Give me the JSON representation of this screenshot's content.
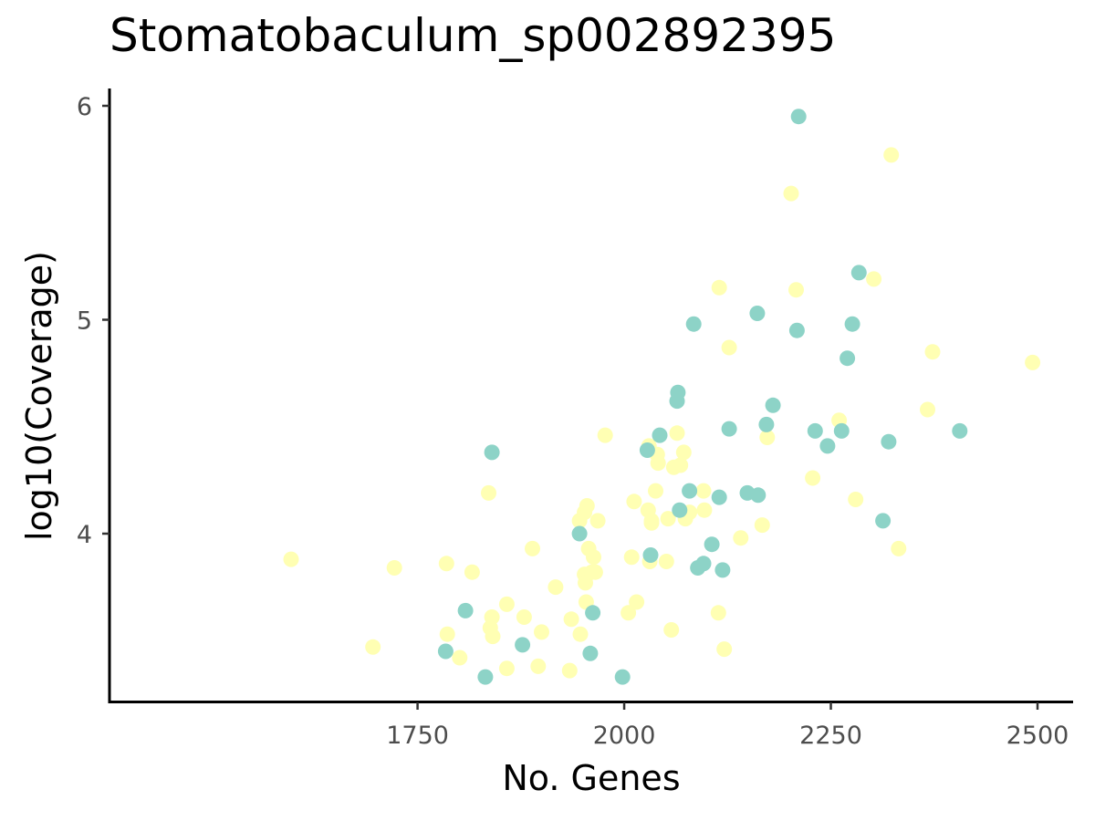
{
  "chart_data": {
    "type": "scatter",
    "title": "Stomatobaculum_sp002892395",
    "xlabel": "No. Genes",
    "ylabel": "log10(Coverage)",
    "xlim": [
      1500,
      2510
    ],
    "ylim": [
      3.2,
      6.08
    ],
    "x_ticks": [
      {
        "value": 1750,
        "label": "1750"
      },
      {
        "value": 2000,
        "label": "2000"
      },
      {
        "value": 2250,
        "label": "2250"
      },
      {
        "value": 2500,
        "label": "2500"
      }
    ],
    "y_ticks": [
      {
        "value": 4,
        "label": "4"
      },
      {
        "value": 5,
        "label": "5"
      },
      {
        "value": 6,
        "label": "6"
      }
    ],
    "grid": false,
    "legend": "none",
    "series": [
      {
        "color": "#ffffb3",
        "points": [
          [
            1597,
            3.88
          ],
          [
            1696,
            3.47
          ],
          [
            1722,
            3.84
          ],
          [
            1785,
            3.86
          ],
          [
            1786,
            3.53
          ],
          [
            1801,
            3.42
          ],
          [
            1816,
            3.82
          ],
          [
            1836,
            4.19
          ],
          [
            1838,
            3.56
          ],
          [
            1840,
            3.61
          ],
          [
            1841,
            3.52
          ],
          [
            1858,
            3.37
          ],
          [
            1858,
            3.67
          ],
          [
            1879,
            3.61
          ],
          [
            1889,
            3.93
          ],
          [
            1896,
            3.38
          ],
          [
            1900,
            3.54
          ],
          [
            1917,
            3.75
          ],
          [
            1934,
            3.36
          ],
          [
            1936,
            3.6
          ],
          [
            1946,
            4.06
          ],
          [
            1947,
            3.53
          ],
          [
            1952,
            4.1
          ],
          [
            1952,
            3.81
          ],
          [
            1953,
            3.77
          ],
          [
            1954,
            3.68
          ],
          [
            1955,
            4.13
          ],
          [
            1957,
            3.93
          ],
          [
            1961,
            3.82
          ],
          [
            1963,
            3.89
          ],
          [
            1965,
            3.82
          ],
          [
            1968,
            4.06
          ],
          [
            1977,
            4.46
          ],
          [
            2005,
            3.63
          ],
          [
            2009,
            3.89
          ],
          [
            2012,
            4.15
          ],
          [
            2015,
            3.68
          ],
          [
            2029,
            4.11
          ],
          [
            2030,
            4.41
          ],
          [
            2031,
            3.87
          ],
          [
            2033,
            4.05
          ],
          [
            2033,
            4.06
          ],
          [
            2038,
            4.2
          ],
          [
            2040,
            4.37
          ],
          [
            2041,
            4.33
          ],
          [
            2051,
            3.87
          ],
          [
            2053,
            4.07
          ],
          [
            2057,
            3.55
          ],
          [
            2060,
            4.31
          ],
          [
            2064,
            4.47
          ],
          [
            2068,
            4.32
          ],
          [
            2072,
            4.38
          ],
          [
            2074,
            4.07
          ],
          [
            2079,
            4.1
          ],
          [
            2096,
            4.2
          ],
          [
            2097,
            4.11
          ],
          [
            2114,
            3.63
          ],
          [
            2115,
            5.15
          ],
          [
            2121,
            3.46
          ],
          [
            2127,
            4.87
          ],
          [
            2141,
            3.98
          ],
          [
            2167,
            4.04
          ],
          [
            2173,
            4.45
          ],
          [
            2202,
            5.59
          ],
          [
            2208,
            5.14
          ],
          [
            2228,
            4.26
          ],
          [
            2260,
            4.53
          ],
          [
            2280,
            4.16
          ],
          [
            2302,
            5.19
          ],
          [
            2323,
            5.77
          ],
          [
            2332,
            3.93
          ],
          [
            2367,
            4.58
          ],
          [
            2373,
            4.85
          ],
          [
            2494,
            4.8
          ]
        ]
      },
      {
        "color": "#8dd3c7",
        "points": [
          [
            1784,
            3.45
          ],
          [
            1808,
            3.64
          ],
          [
            1832,
            3.33
          ],
          [
            1840,
            4.38
          ],
          [
            1877,
            3.48
          ],
          [
            1946,
            4.0
          ],
          [
            1959,
            3.44
          ],
          [
            1962,
            3.63
          ],
          [
            1998,
            3.33
          ],
          [
            2028,
            4.39
          ],
          [
            2032,
            3.9
          ],
          [
            2043,
            4.46
          ],
          [
            2064,
            4.62
          ],
          [
            2065,
            4.66
          ],
          [
            2067,
            4.11
          ],
          [
            2079,
            4.2
          ],
          [
            2084,
            4.98
          ],
          [
            2089,
            3.84
          ],
          [
            2096,
            3.86
          ],
          [
            2106,
            3.95
          ],
          [
            2115,
            4.17
          ],
          [
            2119,
            3.83
          ],
          [
            2127,
            4.49
          ],
          [
            2149,
            4.19
          ],
          [
            2161,
            5.03
          ],
          [
            2162,
            4.18
          ],
          [
            2172,
            4.51
          ],
          [
            2180,
            4.6
          ],
          [
            2209,
            4.95
          ],
          [
            2211,
            5.95
          ],
          [
            2231,
            4.48
          ],
          [
            2246,
            4.41
          ],
          [
            2263,
            4.48
          ],
          [
            2270,
            4.82
          ],
          [
            2276,
            4.98
          ],
          [
            2284,
            5.22
          ],
          [
            2313,
            4.06
          ],
          [
            2320,
            4.43
          ],
          [
            2406,
            4.48
          ]
        ]
      }
    ]
  }
}
